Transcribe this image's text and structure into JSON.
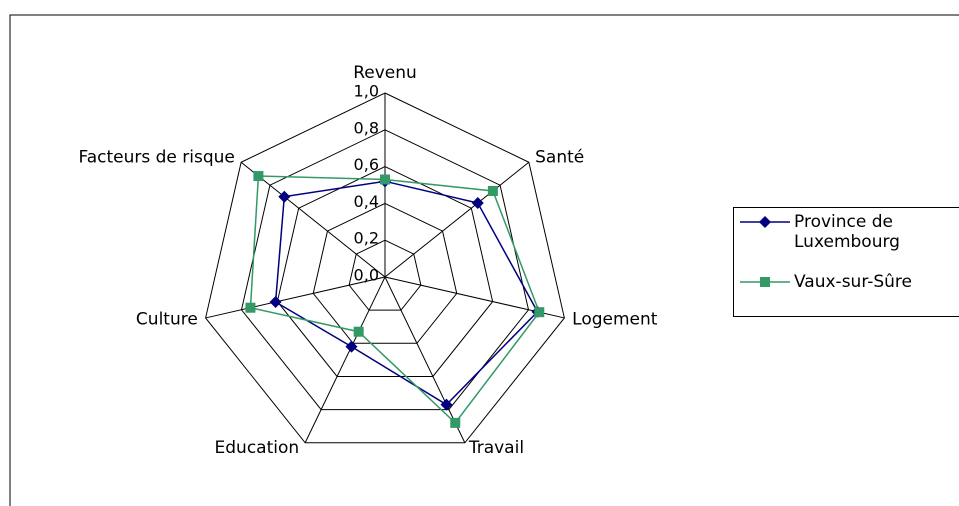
{
  "chart_data": {
    "type": "radar",
    "categories": [
      "Revenu",
      "Santé",
      "Logement",
      "Travail",
      "Education",
      "Culture",
      "Facteurs de risque"
    ],
    "series": [
      {
        "name": "Province de Luxembourg",
        "color": "#000080",
        "marker": "diamond",
        "values": [
          0.52,
          0.645,
          0.85,
          0.77,
          0.42,
          0.61,
          0.7
        ]
      },
      {
        "name": "Vaux-sur-Sûre",
        "color": "#339966",
        "marker": "square",
        "values": [
          0.53,
          0.75,
          0.86,
          0.88,
          0.33,
          0.75,
          0.88
        ]
      }
    ],
    "rlim": [
      0,
      1
    ],
    "rticks": [
      {
        "value": 0,
        "label": "0,0"
      },
      {
        "value": 0.2,
        "label": "0,2"
      },
      {
        "value": 0.4,
        "label": "0,4"
      },
      {
        "value": 0.6,
        "label": "0,6"
      },
      {
        "value": 0.8,
        "label": "0,8"
      },
      {
        "value": 1,
        "label": "1,0"
      }
    ],
    "grid": true,
    "legend": "right"
  }
}
